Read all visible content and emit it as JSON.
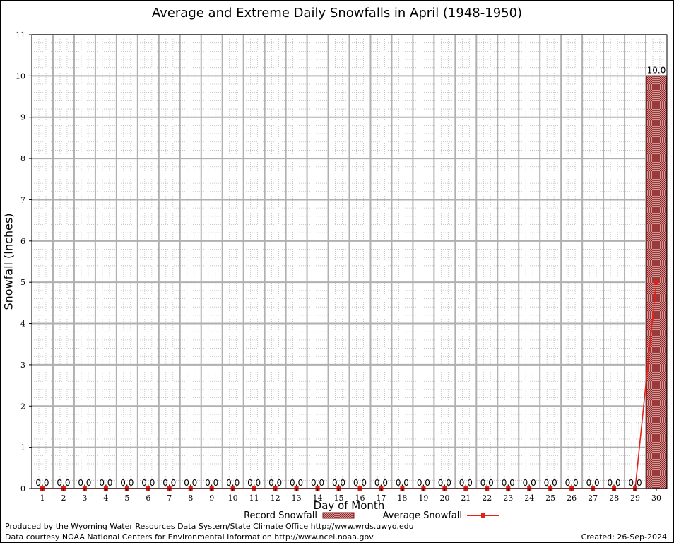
{
  "chart_data": {
    "type": "bar",
    "title": "Average and Extreme Daily Snowfalls in April (1948-1950)",
    "xlabel": "Day of Month",
    "ylabel": "Snowfall (Inches)",
    "ylim": [
      0,
      11
    ],
    "yticks": [
      0,
      1,
      2,
      3,
      4,
      5,
      6,
      7,
      8,
      9,
      10,
      11
    ],
    "grid": true,
    "legend_position": "bottom",
    "categories": [
      1,
      2,
      3,
      4,
      5,
      6,
      7,
      8,
      9,
      10,
      11,
      12,
      13,
      14,
      15,
      16,
      17,
      18,
      19,
      20,
      21,
      22,
      23,
      24,
      25,
      26,
      27,
      28,
      29,
      30
    ],
    "series": [
      {
        "name": "Record Snowfall",
        "type": "bar",
        "color": "#a52a2a",
        "values": [
          0,
          0,
          0,
          0,
          0,
          0,
          0,
          0,
          0,
          0,
          0,
          0,
          0,
          0,
          0,
          0,
          0,
          0,
          0,
          0,
          0,
          0,
          0,
          0,
          0,
          0,
          0,
          0,
          0,
          10.0
        ],
        "labels": [
          "0.0",
          "0.0",
          "0.0",
          "0.0",
          "0.0",
          "0.0",
          "0.0",
          "0.0",
          "0.0",
          "0.0",
          "0.0",
          "0.0",
          "0.0",
          "0.0",
          "0.0",
          "0.0",
          "0.0",
          "0.0",
          "0.0",
          "0.0",
          "0.0",
          "0.0",
          "0.0",
          "0.0",
          "0.0",
          "0.0",
          "0.0",
          "0.0",
          "0.0",
          "10.0"
        ]
      },
      {
        "name": "Average Snowfall",
        "type": "line",
        "color": "#e8201a",
        "values": [
          0,
          0,
          0,
          0,
          0,
          0,
          0,
          0,
          0,
          0,
          0,
          0,
          0,
          0,
          0,
          0,
          0,
          0,
          0,
          0,
          0,
          0,
          0,
          0,
          0,
          0,
          0,
          0,
          0,
          5.0
        ]
      }
    ]
  },
  "footer": {
    "produced_by": "Produced by the Wyoming Water Resources Data System/State Climate Office http://www.wrds.uwyo.edu",
    "courtesy": "Data courtesy NOAA National Centers for Environmental Information http://www.ncei.noaa.gov",
    "created": "Created:  26-Sep-2024"
  }
}
